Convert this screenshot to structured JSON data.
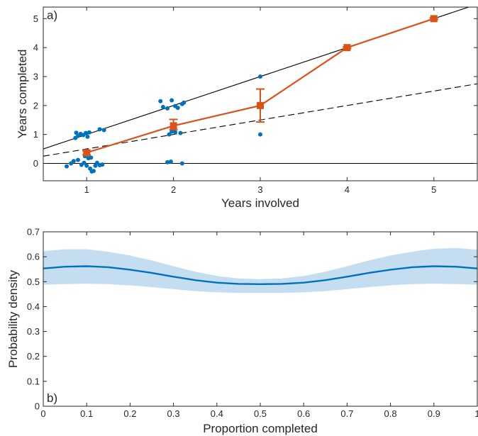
{
  "chart_data": [
    {
      "type": "scatter",
      "panel_label": "a)",
      "xlabel": "Years involved",
      "ylabel": "Years completed",
      "xlim": [
        0.5,
        5.5
      ],
      "ylim": [
        -0.6,
        5.4
      ],
      "xticks": [
        1,
        2,
        3,
        4,
        5
      ],
      "yticks": [
        0,
        1,
        2,
        3,
        4,
        5
      ],
      "colors": {
        "points": "#0072bd",
        "mean": "#d95319",
        "lines": "#000000"
      },
      "reference_lines": [
        {
          "style": "solid",
          "points": [
            [
              0.5,
              0.5
            ],
            [
              5.5,
              5.5
            ]
          ]
        },
        {
          "style": "dashed",
          "points": [
            [
              0.5,
              0.25
            ],
            [
              5.5,
              2.75
            ]
          ]
        },
        {
          "style": "solid",
          "points": [
            [
              0.5,
              0
            ],
            [
              5.5,
              0
            ]
          ]
        }
      ],
      "points": [
        [
          0.77,
          -0.1
        ],
        [
          0.82,
          0.0
        ],
        [
          0.85,
          0.08
        ],
        [
          0.9,
          0.12
        ],
        [
          0.94,
          -0.05
        ],
        [
          0.97,
          0.02
        ],
        [
          1.0,
          -0.08
        ],
        [
          1.02,
          0.18
        ],
        [
          1.04,
          -0.18
        ],
        [
          1.06,
          -0.28
        ],
        [
          1.08,
          -0.26
        ],
        [
          1.1,
          -0.08
        ],
        [
          1.12,
          0.02
        ],
        [
          1.15,
          -0.06
        ],
        [
          1.18,
          -0.04
        ],
        [
          0.98,
          0.25
        ],
        [
          1.05,
          0.2
        ],
        [
          0.87,
          0.88
        ],
        [
          0.88,
          1.06
        ],
        [
          0.9,
          0.95
        ],
        [
          0.93,
          1.02
        ],
        [
          0.96,
          0.98
        ],
        [
          0.99,
          1.05
        ],
        [
          1.01,
          0.92
        ],
        [
          1.03,
          1.07
        ],
        [
          1.15,
          1.18
        ],
        [
          1.2,
          1.15
        ],
        [
          1.93,
          0.04
        ],
        [
          1.97,
          0.06
        ],
        [
          2.1,
          0.0
        ],
        [
          1.95,
          1.0
        ],
        [
          1.98,
          1.1
        ],
        [
          2.0,
          1.15
        ],
        [
          2.02,
          1.08
        ],
        [
          2.08,
          1.05
        ],
        [
          1.85,
          2.15
        ],
        [
          1.88,
          1.95
        ],
        [
          1.93,
          1.9
        ],
        [
          1.98,
          2.18
        ],
        [
          2.02,
          1.98
        ],
        [
          2.05,
          1.92
        ],
        [
          2.1,
          2.05
        ],
        [
          2.12,
          2.1
        ],
        [
          3.0,
          1.0
        ],
        [
          3.0,
          2.0
        ],
        [
          3.0,
          3.0
        ],
        [
          4.0,
          4.0
        ],
        [
          5.0,
          5.0
        ]
      ],
      "mean_series": {
        "x": [
          1,
          2,
          3,
          4,
          5
        ],
        "y": [
          0.37,
          1.3,
          2.0,
          4.0,
          5.0
        ],
        "err_low": [
          0.07,
          0.13,
          0.57,
          0.03,
          0.03
        ],
        "err_high": [
          0.07,
          0.22,
          0.57,
          0.03,
          0.03
        ]
      }
    },
    {
      "type": "area",
      "panel_label": "b)",
      "xlabel": "Proportion completed",
      "ylabel": "Probability density",
      "xlim": [
        0,
        1
      ],
      "ylim": [
        0,
        0.7
      ],
      "xticks": [
        0,
        0.1,
        0.2,
        0.3,
        0.4,
        0.5,
        0.6,
        0.7,
        0.8,
        0.9,
        1
      ],
      "yticks": [
        0,
        0.1,
        0.2,
        0.3,
        0.4,
        0.5,
        0.6,
        0.7
      ],
      "colors": {
        "line": "#0072bd",
        "band": "#c5ddf0"
      },
      "x": [
        0,
        0.05,
        0.1,
        0.15,
        0.2,
        0.25,
        0.3,
        0.35,
        0.4,
        0.45,
        0.5,
        0.55,
        0.6,
        0.65,
        0.7,
        0.75,
        0.8,
        0.85,
        0.9,
        0.95,
        1
      ],
      "y": [
        0.553,
        0.56,
        0.562,
        0.558,
        0.548,
        0.535,
        0.52,
        0.506,
        0.496,
        0.491,
        0.49,
        0.491,
        0.496,
        0.506,
        0.52,
        0.535,
        0.548,
        0.558,
        0.562,
        0.56,
        0.553
      ],
      "band_upper": [
        0.622,
        0.63,
        0.63,
        0.62,
        0.605,
        0.585,
        0.562,
        0.54,
        0.523,
        0.513,
        0.51,
        0.513,
        0.523,
        0.54,
        0.562,
        0.585,
        0.605,
        0.62,
        0.632,
        0.635,
        0.628
      ],
      "band_lower": [
        0.488,
        0.49,
        0.492,
        0.49,
        0.485,
        0.478,
        0.47,
        0.462,
        0.457,
        0.455,
        0.455,
        0.455,
        0.457,
        0.462,
        0.47,
        0.478,
        0.485,
        0.49,
        0.492,
        0.49,
        0.488
      ]
    }
  ]
}
